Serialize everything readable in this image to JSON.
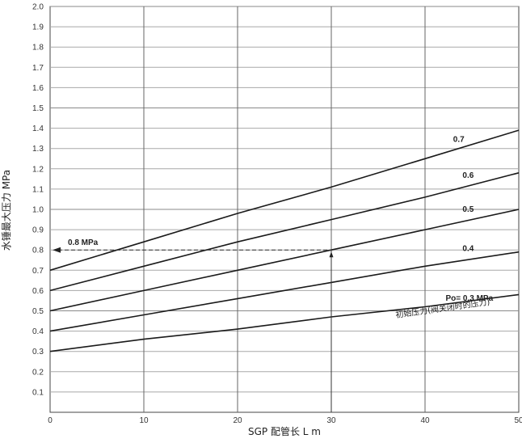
{
  "chart_data": {
    "type": "line",
    "xlabel": "SGP 配管长 L m",
    "ylabel": "水锤最大压力 MPa",
    "xlim": [
      0,
      50
    ],
    "ylim": [
      0,
      2.0
    ],
    "x_ticks": [
      "0",
      "10",
      "20",
      "30",
      "40",
      "50"
    ],
    "y_ticks": [
      "0.1",
      "0.2",
      "0.3",
      "0.4",
      "0.5",
      "0.6",
      "0.7",
      "0.8",
      "0.9",
      "1.0",
      "1.1",
      "1.2",
      "1.3",
      "1.4",
      "1.5",
      "1.6",
      "1.7",
      "1.8",
      "1.9",
      "2.0"
    ],
    "grid": true,
    "x": [
      0,
      10,
      20,
      30,
      40,
      50
    ],
    "series": [
      {
        "name": "0.7",
        "values": [
          0.7,
          0.84,
          0.98,
          1.11,
          1.25,
          1.39
        ]
      },
      {
        "name": "0.6",
        "values": [
          0.6,
          0.72,
          0.84,
          0.95,
          1.06,
          1.18
        ]
      },
      {
        "name": "0.5",
        "values": [
          0.5,
          0.6,
          0.7,
          0.8,
          0.9,
          1.0
        ]
      },
      {
        "name": "0.4",
        "values": [
          0.4,
          0.48,
          0.56,
          0.64,
          0.72,
          0.79
        ]
      },
      {
        "name": "Po= 0.3 MPa",
        "values": [
          0.3,
          0.36,
          0.41,
          0.47,
          0.52,
          0.58
        ]
      }
    ],
    "annotations": {
      "pointer_value": "0.8 MPa",
      "pointer_x": 30,
      "pointer_y": 0.8,
      "initial_pressure_note": "初始压力(阀关闭时的压力)"
    }
  }
}
